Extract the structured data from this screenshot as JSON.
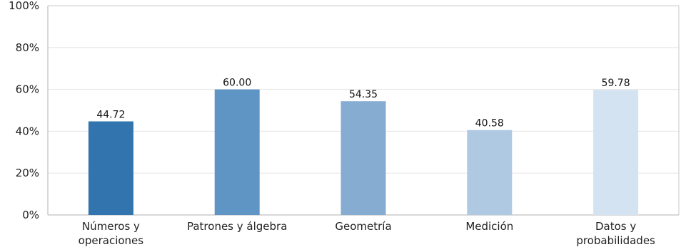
{
  "chart_data": {
    "type": "bar",
    "categories": [
      [
        "Números y",
        "operaciones"
      ],
      [
        "Patrones y álgebra"
      ],
      [
        "Geometría"
      ],
      [
        "Medición"
      ],
      [
        "Datos y",
        "probabilidades"
      ]
    ],
    "values": [
      44.72,
      60.0,
      54.35,
      40.58,
      59.78
    ],
    "value_labels": [
      "44.72",
      "60.00",
      "54.35",
      "40.58",
      "59.78"
    ],
    "colors": [
      "#3274ad",
      "#5f95c4",
      "#86add1",
      "#afc9e3",
      "#d4e3f1"
    ],
    "ylim": [
      0,
      100
    ],
    "yticks": [
      0,
      20,
      40,
      60,
      80,
      100
    ],
    "ytick_labels": [
      "0%",
      "20%",
      "40%",
      "60%",
      "80%",
      "100%"
    ],
    "grid": true,
    "title": "",
    "xlabel": "",
    "ylabel": ""
  }
}
